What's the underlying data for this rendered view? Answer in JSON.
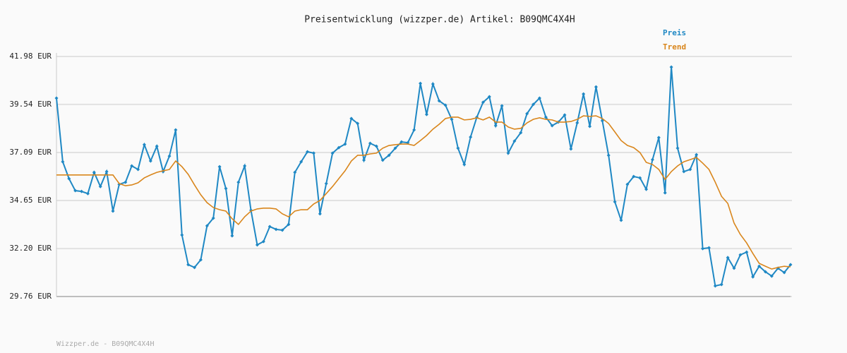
{
  "chart_data": {
    "type": "line",
    "title": "Preisentwicklung (wizzper.de) Artikel: B09QMC4X4H",
    "footer": "Wizzper.de - B09QMC4X4H",
    "legend": "top-right",
    "grid": true,
    "ylim": [
      29.76,
      41.98
    ],
    "yticks": [
      {
        "value": 29.76,
        "label": "29.76 EUR"
      },
      {
        "value": 32.2,
        "label": "32.20 EUR"
      },
      {
        "value": 34.65,
        "label": "34.65 EUR"
      },
      {
        "value": 37.09,
        "label": "37.09 EUR"
      },
      {
        "value": 39.54,
        "label": "39.54 EUR"
      },
      {
        "value": 41.98,
        "label": "41.98 EUR"
      }
    ],
    "series": [
      {
        "name": "Preis",
        "color": "#1f88c4",
        "markers": true,
        "values": [
          39.86,
          36.62,
          35.76,
          35.15,
          35.11,
          35.0,
          36.08,
          35.36,
          36.12,
          34.11,
          35.47,
          35.58,
          36.41,
          36.23,
          37.49,
          36.66,
          37.41,
          36.12,
          36.91,
          38.24,
          32.89,
          31.38,
          31.24,
          31.63,
          33.36,
          33.75,
          36.37,
          35.26,
          32.85,
          35.58,
          36.41,
          34.15,
          32.39,
          32.56,
          33.32,
          33.18,
          33.14,
          33.43,
          36.08,
          36.62,
          37.13,
          37.06,
          33.97,
          35.51,
          37.06,
          37.34,
          37.52,
          38.82,
          38.57,
          36.7,
          37.56,
          37.41,
          36.7,
          36.95,
          37.31,
          37.63,
          37.59,
          38.24,
          40.61,
          39.03,
          40.58,
          39.72,
          39.5,
          38.78,
          37.31,
          36.48,
          37.88,
          38.89,
          39.65,
          39.93,
          38.46,
          39.47,
          37.06,
          37.67,
          38.1,
          39.07,
          39.54,
          39.86,
          38.89,
          38.46,
          38.64,
          39.0,
          37.27,
          38.6,
          40.07,
          38.42,
          40.43,
          38.71,
          36.95,
          34.58,
          33.64,
          35.47,
          35.87,
          35.8,
          35.22,
          36.73,
          37.85,
          35.04,
          41.44,
          37.31,
          36.12,
          36.23,
          36.98,
          32.2,
          32.24,
          30.3,
          30.37,
          31.74,
          31.2,
          31.88,
          32.02,
          30.76,
          31.3,
          31.02,
          30.8,
          31.2,
          30.98,
          31.38
        ]
      },
      {
        "name": "Trend",
        "color": "#d9861c",
        "markers": false,
        "values": [
          35.95,
          35.95,
          35.95,
          35.95,
          35.95,
          35.95,
          35.95,
          35.95,
          35.95,
          35.95,
          35.51,
          35.4,
          35.44,
          35.55,
          35.8,
          35.95,
          36.08,
          36.16,
          36.23,
          36.66,
          36.37,
          35.98,
          35.44,
          34.94,
          34.54,
          34.29,
          34.18,
          34.11,
          33.72,
          33.43,
          33.82,
          34.11,
          34.22,
          34.26,
          34.26,
          34.22,
          33.97,
          33.82,
          34.11,
          34.18,
          34.18,
          34.47,
          34.65,
          35.0,
          35.36,
          35.76,
          36.16,
          36.66,
          36.95,
          36.95,
          37.02,
          37.06,
          37.31,
          37.45,
          37.49,
          37.52,
          37.52,
          37.45,
          37.7,
          37.96,
          38.28,
          38.53,
          38.82,
          38.89,
          38.89,
          38.75,
          38.78,
          38.86,
          38.75,
          38.89,
          38.64,
          38.64,
          38.39,
          38.28,
          38.32,
          38.6,
          38.78,
          38.86,
          38.78,
          38.75,
          38.64,
          38.64,
          38.67,
          38.78,
          38.96,
          38.93,
          38.96,
          38.82,
          38.57,
          38.14,
          37.7,
          37.45,
          37.34,
          37.09,
          36.59,
          36.48,
          36.23,
          35.72,
          36.12,
          36.41,
          36.62,
          36.73,
          36.84,
          36.55,
          36.23,
          35.58,
          34.86,
          34.5,
          33.5,
          32.92,
          32.49,
          31.95,
          31.45,
          31.3,
          31.16,
          31.24,
          31.3,
          31.27
        ]
      }
    ]
  }
}
